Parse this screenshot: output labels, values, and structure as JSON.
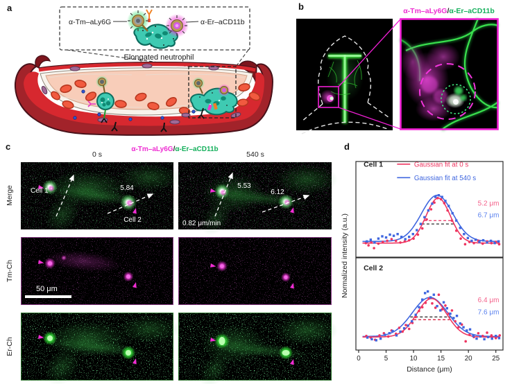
{
  "figure": {
    "panel_a": {
      "label": "a",
      "probe_left": "α-Tm–aLy6G",
      "probe_right": "α-Er–aCD11b",
      "caption": "Elongated neutrophil"
    },
    "panel_b": {
      "label": "b",
      "channel_tm": "α-Tm–aLy6G",
      "channel_sep": "/",
      "channel_er": "α-Er–aCD11b"
    },
    "panel_c": {
      "label": "c",
      "time_0": "0 s",
      "time_540": "540 s",
      "channel_tm": "α-Tm–aLy6G",
      "channel_sep": "/",
      "channel_er": "α-Er–aCD11b",
      "row_merge": "Merge",
      "row_tm": "Tm-Ch",
      "row_er": "Er-Ch",
      "cell1": "Cell 1",
      "cell2": "Cell 2",
      "width_cell2_0s": "5.84",
      "width_cell1_540s": "5.53",
      "width_cell2_540s": "6.12",
      "speed": "0.82 μm/min",
      "scale_bar": "50 μm"
    },
    "panel_d": {
      "label": "d",
      "ylabel": "Normalized intensity (a.u.)",
      "xlabel": "Distance (μm)"
    }
  },
  "colors": {
    "magenta_label": "#ee2ed2",
    "green_label": "#15b05c",
    "fit_0s": "#ee3560",
    "fit_540s": "#3f66df",
    "annotation_pink": "#f4608a",
    "annotation_blue": "#5b82ee"
  },
  "chart_data": [
    {
      "type": "scatter",
      "title": "Cell 1",
      "xlabel": "Distance (μm)",
      "ylabel": "Normalized intensity (a.u.)",
      "xlim": [
        0,
        26
      ],
      "xticks": [
        0,
        5,
        10,
        15,
        20,
        25
      ],
      "grid": false,
      "legend_position": "top-left-inside",
      "legend": [
        {
          "label": "Gaussian fit at 0 s",
          "color": "#ee3560"
        },
        {
          "label": "Gaussian fit at 540 s",
          "color": "#3f66df"
        }
      ],
      "fits": [
        {
          "name": "Gaussian fit at 0 s",
          "color": "#ee3560",
          "center": 14.5,
          "fwhm": 5.2,
          "amplitude": 0.8,
          "baseline": 0.1
        },
        {
          "name": "Gaussian fit at 540 s",
          "color": "#3f66df",
          "center": 14.3,
          "fwhm": 6.7,
          "amplitude": 0.82,
          "baseline": 0.13
        }
      ],
      "fwhm_labels": [
        {
          "text": "5.2 μm",
          "color": "#f4608a",
          "v": 0.77
        },
        {
          "text": "6.7 μm",
          "color": "#5b82ee",
          "v": 0.56
        }
      ],
      "fwhm_lines": [
        {
          "color": "#e8315f",
          "v": 0.5,
          "x1": 11.9,
          "x2": 17.1
        },
        {
          "color": "#2a2a2a",
          "v": 0.44,
          "x1": 11.5,
          "x2": 17.3
        }
      ],
      "series": [
        {
          "name": "0 s data",
          "marker": "circle",
          "color": "#ee3560",
          "points": [
            [
              1.3,
              0.1
            ],
            [
              1.8,
              0.06
            ],
            [
              2.3,
              0.11
            ],
            [
              2.8,
              0.01
            ],
            [
              3.6,
              0.09
            ],
            [
              4.4,
              0.12
            ],
            [
              5.2,
              0.14
            ],
            [
              6.0,
              0.17
            ],
            [
              6.8,
              0.14
            ],
            [
              7.6,
              0.11
            ],
            [
              8.4,
              0.13
            ],
            [
              9.2,
              0.15
            ],
            [
              10.0,
              0.18
            ],
            [
              10.8,
              0.25
            ],
            [
              11.6,
              0.36
            ],
            [
              12.4,
              0.52
            ],
            [
              13.2,
              0.7
            ],
            [
              13.8,
              0.82
            ],
            [
              14.4,
              0.9
            ],
            [
              15.0,
              0.88
            ],
            [
              15.6,
              0.81
            ],
            [
              16.2,
              0.68
            ],
            [
              17.0,
              0.5
            ],
            [
              17.8,
              0.32
            ],
            [
              18.6,
              0.18
            ],
            [
              19.4,
              0.08
            ],
            [
              20.2,
              0.12
            ],
            [
              21.0,
              0.1
            ],
            [
              21.8,
              0.14
            ],
            [
              22.6,
              0.09
            ],
            [
              23.4,
              0.13
            ],
            [
              24.2,
              0.1
            ],
            [
              25.0,
              0.12
            ],
            [
              25.6,
              0.08
            ]
          ]
        },
        {
          "name": "540 s data",
          "marker": "square",
          "color": "#3f66df",
          "points": [
            [
              1.5,
              0.13
            ],
            [
              2.2,
              0.16
            ],
            [
              2.9,
              0.11
            ],
            [
              3.6,
              0.18
            ],
            [
              4.3,
              0.22
            ],
            [
              5.0,
              0.2
            ],
            [
              5.7,
              0.25
            ],
            [
              6.4,
              0.23
            ],
            [
              7.1,
              0.26
            ],
            [
              7.8,
              0.21
            ],
            [
              8.5,
              0.17
            ],
            [
              9.2,
              0.21
            ],
            [
              9.9,
              0.26
            ],
            [
              10.6,
              0.33
            ],
            [
              11.3,
              0.44
            ],
            [
              12.0,
              0.56
            ],
            [
              12.7,
              0.68
            ],
            [
              13.4,
              0.8
            ],
            [
              14.0,
              0.92
            ],
            [
              14.6,
              0.95
            ],
            [
              15.2,
              0.92
            ],
            [
              15.8,
              0.85
            ],
            [
              16.4,
              0.76
            ],
            [
              17.1,
              0.63
            ],
            [
              17.8,
              0.5
            ],
            [
              18.5,
              0.37
            ],
            [
              19.2,
              0.26
            ],
            [
              19.9,
              0.19
            ],
            [
              20.6,
              0.14
            ],
            [
              21.3,
              0.16
            ],
            [
              22.0,
              0.12
            ],
            [
              22.7,
              0.15
            ],
            [
              23.4,
              0.11
            ],
            [
              24.1,
              0.14
            ],
            [
              24.8,
              0.1
            ],
            [
              25.5,
              0.13
            ]
          ]
        }
      ]
    },
    {
      "type": "scatter",
      "title": "Cell 2",
      "xlabel": "Distance (μm)",
      "ylabel": "Normalized intensity (a.u.)",
      "xlim": [
        0,
        26
      ],
      "xticks": [
        0,
        5,
        10,
        15,
        20,
        25
      ],
      "grid": false,
      "fits": [
        {
          "name": "Gaussian fit at 0 s",
          "color": "#ee3560",
          "center": 13.3,
          "fwhm": 6.4,
          "amplitude": 0.71,
          "baseline": 0.09
        },
        {
          "name": "Gaussian fit at 540 s",
          "color": "#3f66df",
          "center": 13.0,
          "fwhm": 7.6,
          "amplitude": 0.72,
          "baseline": 0.1
        }
      ],
      "fwhm_labels": [
        {
          "text": "6.4 μm",
          "color": "#f4608a",
          "v": 0.73
        },
        {
          "text": "7.6 μm",
          "color": "#5b82ee",
          "v": 0.51
        }
      ],
      "fwhm_lines": [
        {
          "color": "#1c1c1c",
          "v": 0.46,
          "x1": 9.4,
          "x2": 17.2
        },
        {
          "color": "#d61f3e",
          "v": 0.41,
          "x1": 10.0,
          "x2": 16.6
        }
      ],
      "series": [
        {
          "name": "0 s data",
          "marker": "circle",
          "color": "#ee3560",
          "points": [
            [
              1.4,
              0.11
            ],
            [
              2.2,
              0.08
            ],
            [
              3.0,
              0.04
            ],
            [
              3.8,
              0.12
            ],
            [
              4.6,
              0.16
            ],
            [
              5.4,
              0.1
            ],
            [
              6.0,
              0.21
            ],
            [
              6.8,
              0.15
            ],
            [
              7.4,
              0.26
            ],
            [
              8.0,
              0.19
            ],
            [
              8.6,
              0.31
            ],
            [
              9.2,
              0.24
            ],
            [
              9.8,
              0.35
            ],
            [
              10.4,
              0.46
            ],
            [
              11.0,
              0.57
            ],
            [
              11.6,
              0.64
            ],
            [
              12.2,
              0.72
            ],
            [
              12.8,
              0.8
            ],
            [
              13.4,
              0.71
            ],
            [
              14.0,
              0.63
            ],
            [
              14.6,
              0.87
            ],
            [
              15.2,
              0.6
            ],
            [
              15.8,
              0.67
            ],
            [
              16.4,
              0.52
            ],
            [
              17.0,
              0.58
            ],
            [
              17.6,
              0.38
            ],
            [
              18.2,
              0.27
            ],
            [
              18.8,
              0.32
            ],
            [
              19.5,
              0.01
            ],
            [
              20.2,
              0.13
            ],
            [
              21.0,
              0.09
            ],
            [
              21.8,
              0.16
            ],
            [
              22.6,
              0.11
            ],
            [
              23.4,
              0.17
            ],
            [
              24.2,
              0.12
            ],
            [
              25.0,
              0.07
            ],
            [
              25.7,
              0.12
            ]
          ]
        },
        {
          "name": "540 s data",
          "marker": "square",
          "color": "#3f66df",
          "points": [
            [
              1.6,
              0.08
            ],
            [
              2.4,
              0.05
            ],
            [
              3.2,
              0.03
            ],
            [
              4.0,
              0.06
            ],
            [
              4.8,
              0.13
            ],
            [
              5.6,
              0.16
            ],
            [
              6.2,
              0.2
            ],
            [
              6.9,
              0.12
            ],
            [
              7.6,
              0.19
            ],
            [
              8.3,
              0.25
            ],
            [
              9.0,
              0.3
            ],
            [
              9.7,
              0.38
            ],
            [
              10.4,
              0.5
            ],
            [
              11.0,
              0.64
            ],
            [
              11.6,
              0.78
            ],
            [
              12.1,
              0.9
            ],
            [
              12.6,
              0.93
            ],
            [
              13.1,
              0.82
            ],
            [
              13.7,
              0.87
            ],
            [
              14.3,
              0.66
            ],
            [
              14.9,
              0.58
            ],
            [
              15.5,
              0.73
            ],
            [
              16.1,
              0.62
            ],
            [
              16.7,
              0.52
            ],
            [
              17.3,
              0.44
            ],
            [
              17.9,
              0.48
            ],
            [
              18.5,
              0.34
            ],
            [
              19.1,
              0.27
            ],
            [
              19.7,
              0.21
            ],
            [
              20.3,
              0.23
            ],
            [
              20.9,
              0.11
            ],
            [
              21.5,
              0.06
            ],
            [
              22.2,
              0.1
            ],
            [
              22.9,
              0.05
            ],
            [
              23.6,
              0.09
            ],
            [
              24.3,
              0.06
            ],
            [
              25.0,
              0.11
            ],
            [
              25.6,
              0.07
            ]
          ]
        }
      ]
    }
  ]
}
